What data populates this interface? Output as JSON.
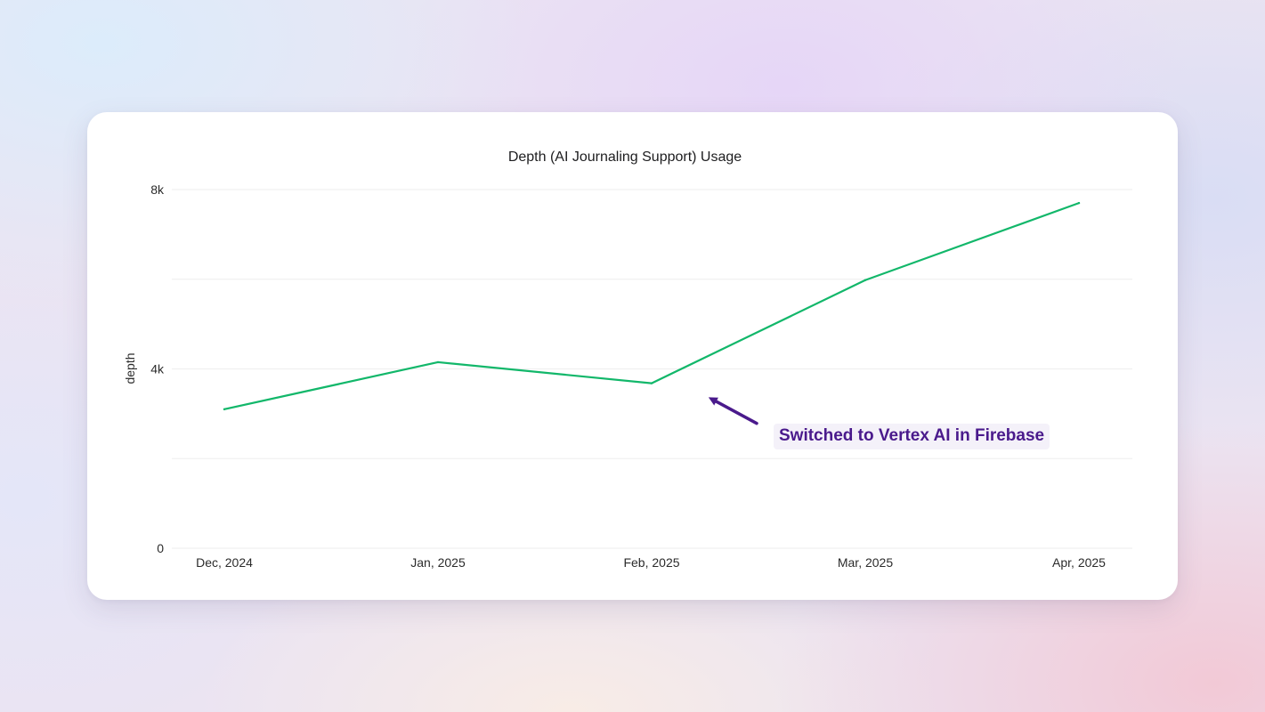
{
  "colors": {
    "line": "#12b76a",
    "annotation": "#4a1a8c"
  },
  "chart_data": {
    "type": "line",
    "title": "Depth (AI Journaling Support) Usage",
    "xlabel": "",
    "ylabel": "depth",
    "categories": [
      "Dec, 2024",
      "Jan, 2025",
      "Feb, 2025",
      "Mar, 2025",
      "Apr, 2025"
    ],
    "series": [
      {
        "values": [
          3100,
          4150,
          3680,
          5980,
          7700
        ]
      }
    ],
    "ylim": [
      0,
      8000
    ],
    "yticks": [
      {
        "value": 0,
        "label": "0"
      },
      {
        "value": 2000,
        "label": ""
      },
      {
        "value": 4000,
        "label": "4k"
      },
      {
        "value": 6000,
        "label": ""
      },
      {
        "value": 8000,
        "label": "8k"
      }
    ],
    "grid": true,
    "legend": "none",
    "annotation": {
      "text": "Switched to Vertex AI in Firebase",
      "points_to": {
        "x": "Feb, 2025",
        "y": 3400
      }
    }
  }
}
